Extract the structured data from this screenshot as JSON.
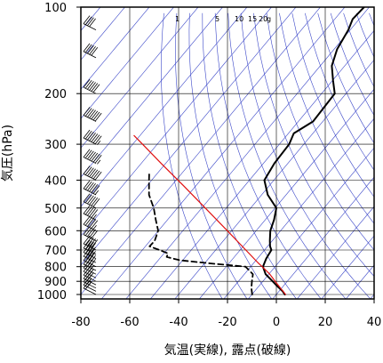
{
  "chart_data": {
    "type": "line",
    "diagram": "skew-T log-P",
    "xlabel": "気温(実線), 露点(破線)",
    "ylabel": "気圧(hPa)",
    "xlim": [
      -80,
      40
    ],
    "ylim": [
      1000,
      100
    ],
    "y_scale": "log",
    "y_reversed": true,
    "skew_degC_per_decade": 98,
    "xticks": [
      "-80",
      "-60",
      "-40",
      "-20",
      "0",
      "20",
      "40"
    ],
    "yticks": [
      100,
      200,
      300,
      400,
      500,
      600,
      700,
      800,
      900,
      1000
    ],
    "ytick_labels": [
      "100",
      "200",
      "300",
      "400",
      "500",
      "600",
      "700",
      "800",
      "900",
      "1000"
    ],
    "mixing_ratio_labels": [
      "1",
      "5",
      "10",
      "15",
      "20",
      "g"
    ],
    "colors": {
      "isotherm": "#3a46c8",
      "dry_adiabat": "#3a46c8",
      "temperature": "#000000",
      "dewpoint": "#000000",
      "parcel": "#e01010",
      "grid": "#000000"
    },
    "series": [
      {
        "style": "solid",
        "p": [
          1000,
          975,
          950,
          925,
          900,
          850,
          800,
          750,
          700,
          680,
          650,
          600,
          550,
          500,
          450,
          400,
          350,
          300,
          275,
          250,
          200,
          180,
          160,
          140,
          120,
          110,
          100
        ],
        "values": [
          3.5,
          1.5,
          -1,
          -3.5,
          -6,
          -11.3,
          -15,
          -16.4,
          -17.2,
          -19,
          -21,
          -24.2,
          -26.4,
          -29.5,
          -37.5,
          -43.9,
          -45.5,
          -46,
          -47.8,
          -44,
          -44.6,
          -49.8,
          -55.3,
          -58.8,
          -60.8,
          -62.7,
          -62.1
        ]
      },
      {
        "style": "dashed",
        "p": [
          1000,
          950,
          900,
          850,
          800,
          780,
          760,
          740,
          720,
          700,
          680,
          650,
          600,
          550,
          500,
          450,
          400,
          380
        ],
        "values": [
          -9.9,
          -12.4,
          -14.5,
          -16.5,
          -22.1,
          -37.5,
          -51.2,
          -57.7,
          -58.3,
          -63,
          -68.3,
          -68.1,
          -70.1,
          -74.8,
          -79.7,
          -86.1,
          -91.1,
          -93.2
        ]
      },
      {
        "style": "parcel",
        "p": [
          1000,
          950,
          900,
          870,
          850,
          800,
          780,
          760,
          700,
          600,
          500,
          420,
          350,
          300,
          280
        ],
        "values": [
          3.8,
          -0.5,
          -5,
          -7.7,
          -9.6,
          -15.3,
          -17.8,
          -20.2,
          -27.7,
          -41.8,
          -58.6,
          -74.7,
          -91.8,
          -106,
          -112.4
        ]
      }
    ],
    "wind_barbs": [
      {
        "p": 1000,
        "wspd_kt": 20
      },
      {
        "p": 975,
        "wspd_kt": 25
      },
      {
        "p": 950,
        "wspd_kt": 25
      },
      {
        "p": 925,
        "wspd_kt": 30
      },
      {
        "p": 900,
        "wspd_kt": 30
      },
      {
        "p": 875,
        "wspd_kt": 35
      },
      {
        "p": 850,
        "wspd_kt": 35
      },
      {
        "p": 825,
        "wspd_kt": 40
      },
      {
        "p": 800,
        "wspd_kt": 40
      },
      {
        "p": 775,
        "wspd_kt": 40
      },
      {
        "p": 750,
        "wspd_kt": 45
      },
      {
        "p": 725,
        "wspd_kt": 45
      },
      {
        "p": 700,
        "wspd_kt": 50
      },
      {
        "p": 650,
        "wspd_kt": 50
      },
      {
        "p": 600,
        "wspd_kt": 55
      },
      {
        "p": 550,
        "wspd_kt": 55
      },
      {
        "p": 500,
        "wspd_kt": 60
      },
      {
        "p": 450,
        "wspd_kt": 65
      },
      {
        "p": 400,
        "wspd_kt": 70
      },
      {
        "p": 350,
        "wspd_kt": 75
      },
      {
        "p": 300,
        "wspd_kt": 75
      },
      {
        "p": 250,
        "wspd_kt": 70
      },
      {
        "p": 200,
        "wspd_kt": 60
      },
      {
        "p": 150,
        "wspd_kt": 50
      },
      {
        "p": 120,
        "wspd_kt": 40
      },
      {
        "p": 100,
        "wspd_kt": 35
      }
    ]
  }
}
